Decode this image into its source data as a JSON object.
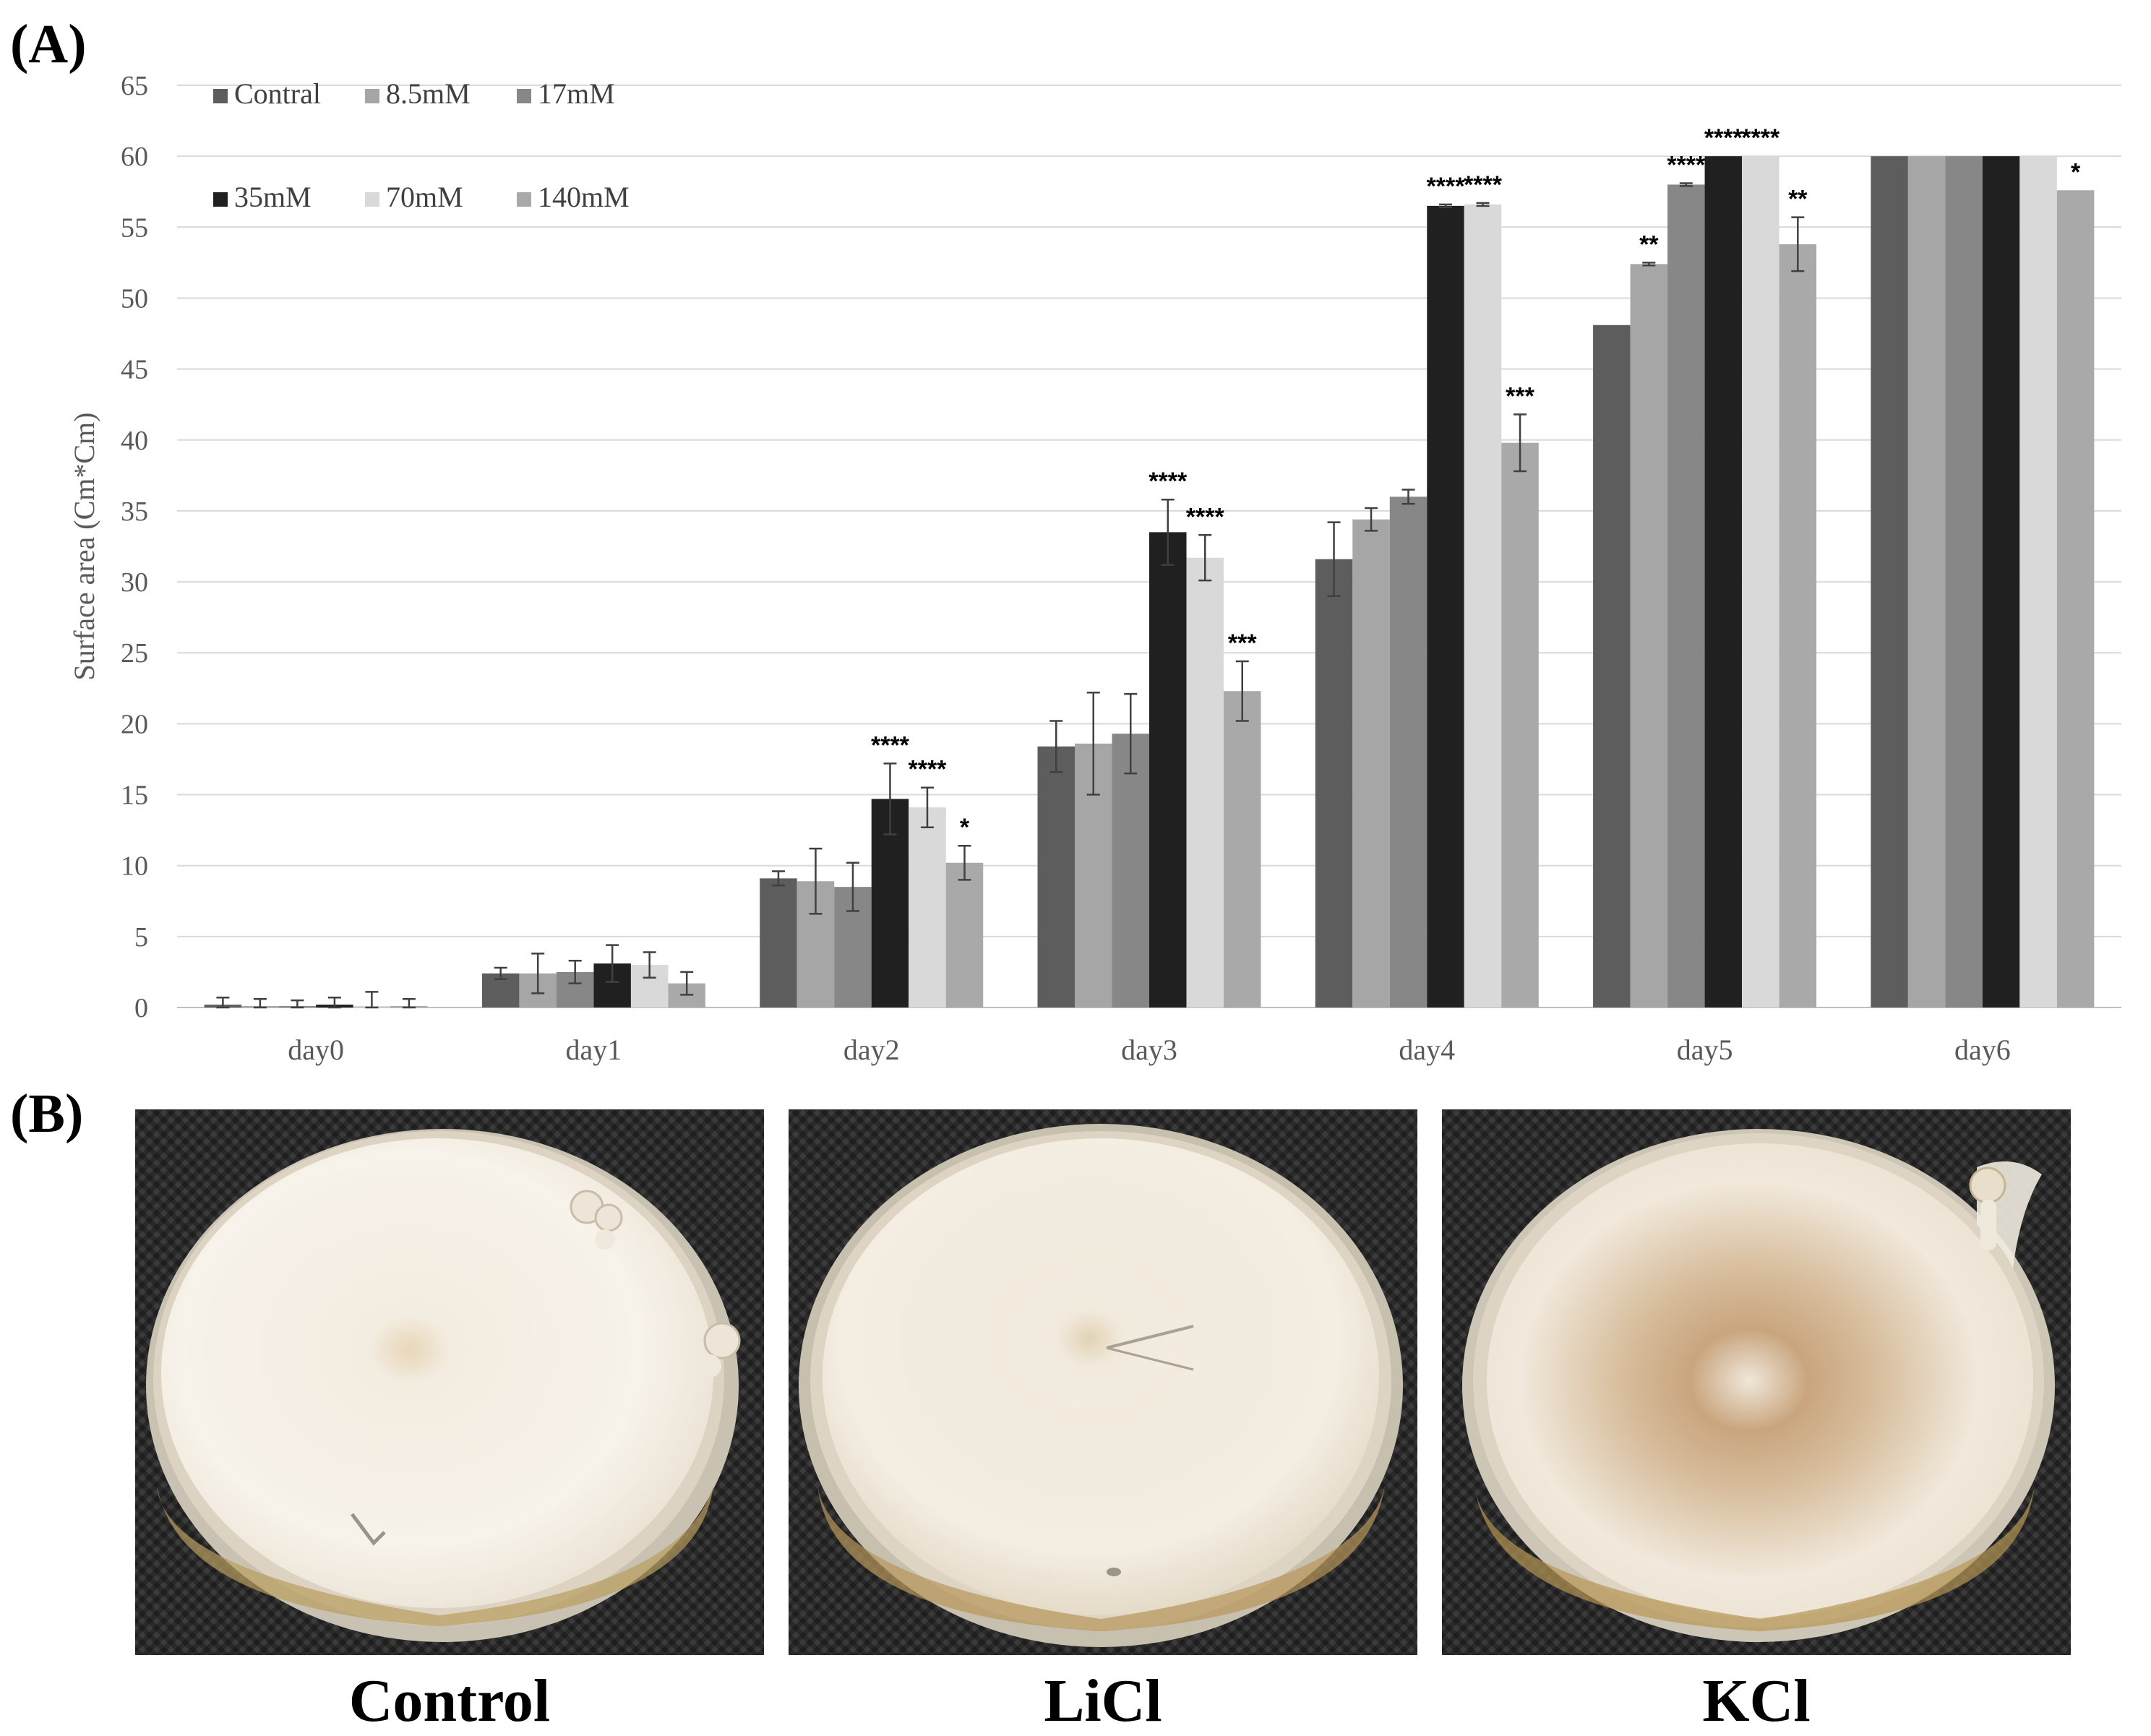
{
  "panels": {
    "a_label": "(A)",
    "b_label": "(B)"
  },
  "chart_data": {
    "type": "bar",
    "title": "",
    "xlabel": "",
    "ylabel": "Surface area (Cm*Cm)",
    "ylim": [
      0,
      65
    ],
    "yticks": [
      0,
      5,
      10,
      15,
      20,
      25,
      30,
      35,
      40,
      45,
      50,
      55,
      60,
      65
    ],
    "grid": true,
    "legend_position": "top-left",
    "categories": [
      "day0",
      "day1",
      "day2",
      "day3",
      "day4",
      "day5",
      "day6"
    ],
    "series": [
      {
        "name": "Contral",
        "color": "#5d5d5d",
        "values": [
          0.2,
          2.4,
          9.1,
          18.4,
          31.6,
          48.1,
          60
        ],
        "errors": [
          0.5,
          0.4,
          0.5,
          1.8,
          2.6,
          0,
          0
        ],
        "sig": [
          "",
          "",
          "",
          "",
          "",
          "",
          ""
        ]
      },
      {
        "name": "8.5mM",
        "color": "#a6a6a6",
        "values": [
          0.1,
          2.4,
          8.9,
          18.6,
          34.4,
          52.4,
          60
        ],
        "errors": [
          0.5,
          1.4,
          2.3,
          3.6,
          0.8,
          0.1,
          0
        ],
        "sig": [
          "",
          "",
          "",
          "",
          "",
          "**",
          ""
        ]
      },
      {
        "name": "17mM",
        "color": "#878787",
        "values": [
          0.1,
          2.5,
          8.5,
          19.3,
          36.0,
          58.0,
          60
        ],
        "errors": [
          0.4,
          0.8,
          1.7,
          2.8,
          0.5,
          0.1,
          0
        ],
        "sig": [
          "",
          "",
          "",
          "",
          "",
          "****",
          ""
        ]
      },
      {
        "name": "35mM",
        "color": "#202020",
        "values": [
          0.2,
          3.1,
          14.7,
          33.5,
          56.5,
          60.0,
          60
        ],
        "errors": [
          0.5,
          1.3,
          2.5,
          2.3,
          0.1,
          0,
          0
        ],
        "sig": [
          "",
          "",
          "****",
          "****",
          "****",
          "****",
          ""
        ]
      },
      {
        "name": "70mM",
        "color": "#d9d9d9",
        "values": [
          0.1,
          3.0,
          14.1,
          31.7,
          56.6,
          60.0,
          60
        ],
        "errors": [
          1.0,
          0.9,
          1.4,
          1.6,
          0.1,
          0,
          0
        ],
        "sig": [
          "",
          "",
          "****",
          "****",
          "****",
          "****",
          ""
        ]
      },
      {
        "name": "140mM",
        "color": "#a9a9a9",
        "values": [
          0.1,
          1.7,
          10.2,
          22.3,
          39.8,
          53.8,
          57.6
        ],
        "errors": [
          0.5,
          0.8,
          1.2,
          2.1,
          2.0,
          1.9,
          0
        ],
        "sig": [
          "",
          "",
          "*",
          "***",
          "***",
          "**",
          "*"
        ]
      }
    ]
  },
  "photos": [
    {
      "caption": "Control",
      "icon": "petri-dish-control"
    },
    {
      "caption": "LiCl",
      "icon": "petri-dish-licl"
    },
    {
      "caption": "KCl",
      "icon": "petri-dish-kcl"
    }
  ]
}
